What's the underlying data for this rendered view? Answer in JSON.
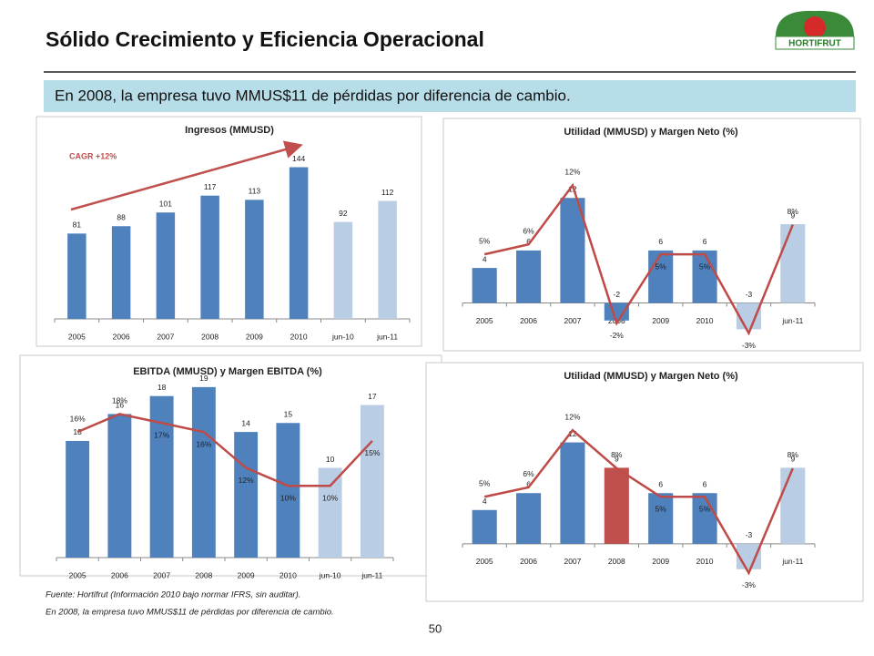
{
  "title": "Sólido Crecimiento y Eficiencia Operacional",
  "subtitle": "En 2008, la empresa tuvo MMUS$11 de pérdidas por diferencia de cambio.",
  "logo": "HORTIFRUT",
  "footnotes": [
    "Fuente: Hortifrut (Información 2010 bajo normar IFRS, sin auditar).",
    "En 2008, la empresa tuvo MMUS$11 de pérdidas por diferencia de cambio."
  ],
  "page_number": "50",
  "chart_data": [
    {
      "type": "bar",
      "title": "Ingresos (MMUSD)",
      "annotation": "CAGR +12%",
      "annotation_color": "#c0504d",
      "categories": [
        "2005",
        "2006",
        "2007",
        "2008",
        "2009",
        "2010",
        "jun-10",
        "jun-11"
      ],
      "ylim": [
        0,
        160
      ],
      "series": [
        {
          "type": "bar",
          "values": [
            81,
            88,
            101,
            117,
            113,
            144,
            92,
            112
          ],
          "colors": [
            "#4f81bd",
            "#4f81bd",
            "#4f81bd",
            "#4f81bd",
            "#4f81bd",
            "#4f81bd",
            "#b9cde5",
            "#b9cde5"
          ]
        }
      ]
    },
    {
      "type": "combo",
      "title": "Utilidad (MMUSD) y Margen Neto (%)",
      "categories": [
        "2005",
        "2006",
        "2007",
        "2008",
        "2009",
        "2010",
        "jun-10",
        "jun-11"
      ],
      "ylim": [
        -4,
        14
      ],
      "y2lim": [
        -3.5,
        12.5
      ],
      "series": [
        {
          "type": "bar",
          "values": [
            4,
            6,
            12,
            -2,
            6,
            6,
            -3,
            9
          ],
          "colors": [
            "#4f81bd",
            "#4f81bd",
            "#4f81bd",
            "#4f81bd",
            "#4f81bd",
            "#4f81bd",
            "#b9cde5",
            "#b9cde5"
          ]
        },
        {
          "type": "line",
          "axis": "y2",
          "color": "#be4b48",
          "values": [
            5,
            6,
            12,
            -2,
            5,
            5,
            -3,
            8
          ],
          "value_labels": [
            "5%",
            "6%",
            "12%",
            "-2%",
            "5%",
            "5%",
            "-3%",
            "8%"
          ]
        }
      ]
    },
    {
      "type": "combo",
      "title": "EBITDA (MMUSD) y Margen EBITDA (%)",
      "categories": [
        "2005",
        "2006",
        "2007",
        "2008",
        "2009",
        "2010",
        "jun-10",
        "jun-11"
      ],
      "ylim": [
        0,
        20
      ],
      "y2lim": [
        2,
        22
      ],
      "series": [
        {
          "type": "bar",
          "values": [
            13,
            16,
            18,
            19,
            14,
            15,
            10,
            17
          ],
          "colors": [
            "#4f81bd",
            "#4f81bd",
            "#4f81bd",
            "#4f81bd",
            "#4f81bd",
            "#4f81bd",
            "#b9cde5",
            "#b9cde5"
          ]
        },
        {
          "type": "line",
          "axis": "y2",
          "color": "#be4b48",
          "values": [
            16,
            18,
            17,
            16,
            12,
            10,
            10,
            15
          ],
          "value_labels": [
            "16%",
            "18%",
            "17%",
            "16%",
            "12%",
            "10%",
            "10%",
            "15%"
          ]
        }
      ]
    },
    {
      "type": "combo",
      "title": "Utilidad (MMUSD) y Margen Neto (%)",
      "categories": [
        "2005",
        "2006",
        "2007",
        "2008",
        "2009",
        "2010",
        "jun-10",
        "jun-11"
      ],
      "ylim": [
        -4,
        14
      ],
      "y2lim": [
        -3.5,
        12.5
      ],
      "series": [
        {
          "type": "bar",
          "values": [
            4,
            6,
            12,
            9,
            6,
            6,
            -3,
            9
          ],
          "colors": [
            "#4f81bd",
            "#4f81bd",
            "#4f81bd",
            "#c0504d",
            "#4f81bd",
            "#4f81bd",
            "#b9cde5",
            "#b9cde5"
          ]
        },
        {
          "type": "line",
          "axis": "y2",
          "color": "#be4b48",
          "values": [
            5,
            6,
            12,
            8,
            5,
            5,
            -3,
            8
          ],
          "value_labels": [
            "5%",
            "6%",
            "12%",
            "8%",
            "5%",
            "5%",
            "-3%",
            "8%"
          ]
        }
      ]
    }
  ]
}
